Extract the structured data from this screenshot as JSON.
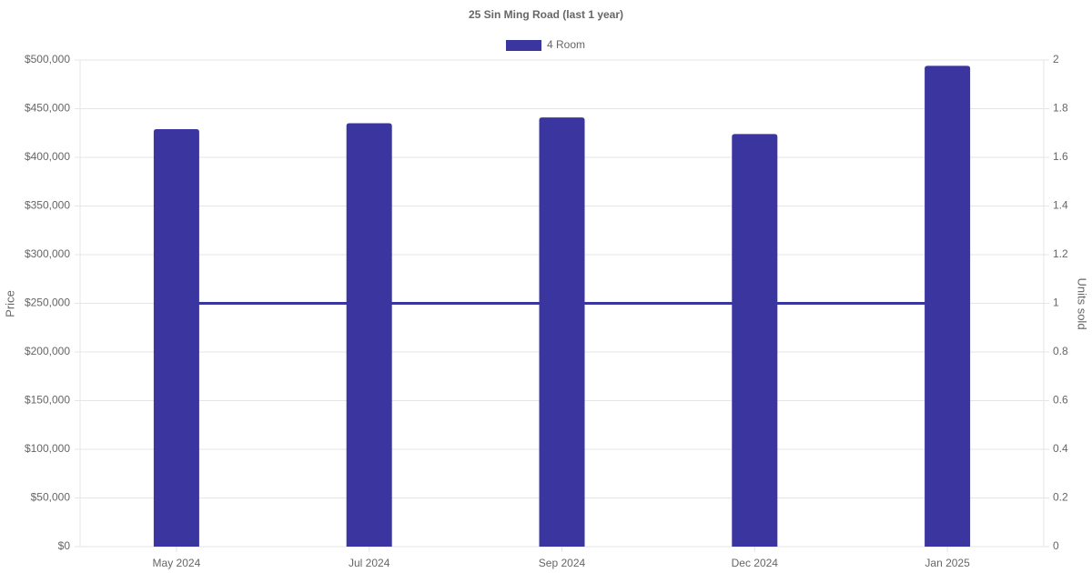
{
  "chart_data": {
    "type": "bar",
    "title": "25 Sin Ming Road (last 1 year)",
    "categories": [
      "May 2024",
      "Jul 2024",
      "Sep 2024",
      "Dec 2024",
      "Jan 2025"
    ],
    "series": [
      {
        "name": "4 Room",
        "type": "bar",
        "color": "#3a359f",
        "values": [
          429000,
          435000,
          441000,
          424000,
          494000
        ]
      },
      {
        "type": "line",
        "axis": "y2",
        "color": "#3a359f",
        "values": [
          1,
          1,
          1,
          1,
          1
        ]
      }
    ],
    "ylabel": "Price",
    "y2label": "Units sold",
    "ylim": [
      0,
      500000
    ],
    "yticks": [
      {
        "value": 0,
        "label": "$0"
      },
      {
        "value": 50000,
        "label": "$50,000"
      },
      {
        "value": 100000,
        "label": "$100,000"
      },
      {
        "value": 150000,
        "label": "$150,000"
      },
      {
        "value": 200000,
        "label": "$200,000"
      },
      {
        "value": 250000,
        "label": "$250,000"
      },
      {
        "value": 300000,
        "label": "$300,000"
      },
      {
        "value": 350000,
        "label": "$350,000"
      },
      {
        "value": 400000,
        "label": "$400,000"
      },
      {
        "value": 450000,
        "label": "$450,000"
      },
      {
        "value": 500000,
        "label": "$500,000"
      }
    ],
    "y2lim": [
      0,
      2
    ],
    "y2ticks": [
      0,
      0.2,
      0.4,
      0.6,
      0.8,
      1,
      1.2,
      1.4,
      1.6,
      1.8,
      2
    ],
    "grid": true,
    "legend": "top"
  }
}
